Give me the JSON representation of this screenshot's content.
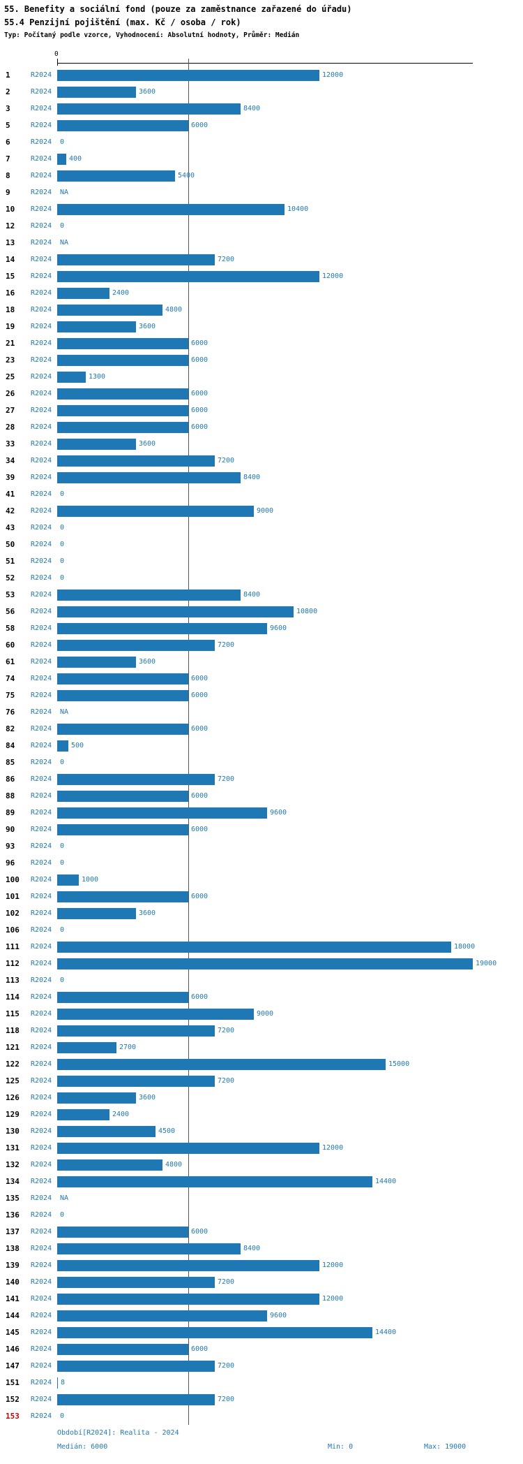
{
  "header": {
    "title": "55. Benefity a sociální fond (pouze za zaměstnance zařazené do úřadu)",
    "subtitle": "55.4 Penzijní pojištění (max. Kč / osoba / rok)",
    "meta": "Typ: Počítaný podle vzorce, Vyhodnocení: Absolutní hodnoty, Průměr: Medián"
  },
  "footer": {
    "period": "Období[R2024]: Realita - 2024",
    "median": "Medián: 6000",
    "min": "Min: 0",
    "max": "Max: 19000"
  },
  "chart_data": {
    "type": "bar",
    "orientation": "horizontal",
    "title": "55. Benefity a sociální fond (pouze za zaměstnance zařazené do úřadu)",
    "subtitle": "55.4 Penzijní pojištění (max. Kč / osoba / rok)",
    "series_label": "R2024",
    "axis": {
      "origin_label": "0",
      "min": 0,
      "max": 19000
    },
    "xlim": [
      0,
      19000
    ],
    "median_value": 6000,
    "min_value": 0,
    "max_value": 19000,
    "highlighted_row_id": "153",
    "bar_color": "#1f77b4",
    "label_color": "#1f77b4",
    "highlight_color": "#cc0000",
    "rows": [
      {
        "id": "1",
        "value": 12000,
        "label": "12000"
      },
      {
        "id": "2",
        "value": 3600,
        "label": "3600"
      },
      {
        "id": "3",
        "value": 8400,
        "label": "8400"
      },
      {
        "id": "5",
        "value": 6000,
        "label": "6000"
      },
      {
        "id": "6",
        "value": 0,
        "label": "0"
      },
      {
        "id": "7",
        "value": 400,
        "label": "400"
      },
      {
        "id": "8",
        "value": 5400,
        "label": "5400"
      },
      {
        "id": "9",
        "value": null,
        "label": "NA"
      },
      {
        "id": "10",
        "value": 10400,
        "label": "10400"
      },
      {
        "id": "12",
        "value": 0,
        "label": "0"
      },
      {
        "id": "13",
        "value": null,
        "label": "NA"
      },
      {
        "id": "14",
        "value": 7200,
        "label": "7200"
      },
      {
        "id": "15",
        "value": 12000,
        "label": "12000"
      },
      {
        "id": "16",
        "value": 2400,
        "label": "2400"
      },
      {
        "id": "18",
        "value": 4800,
        "label": "4800"
      },
      {
        "id": "19",
        "value": 3600,
        "label": "3600"
      },
      {
        "id": "21",
        "value": 6000,
        "label": "6000"
      },
      {
        "id": "23",
        "value": 6000,
        "label": "6000"
      },
      {
        "id": "25",
        "value": 1300,
        "label": "1300"
      },
      {
        "id": "26",
        "value": 6000,
        "label": "6000"
      },
      {
        "id": "27",
        "value": 6000,
        "label": "6000"
      },
      {
        "id": "28",
        "value": 6000,
        "label": "6000"
      },
      {
        "id": "33",
        "value": 3600,
        "label": "3600"
      },
      {
        "id": "34",
        "value": 7200,
        "label": "7200"
      },
      {
        "id": "39",
        "value": 8400,
        "label": "8400"
      },
      {
        "id": "41",
        "value": 0,
        "label": "0"
      },
      {
        "id": "42",
        "value": 9000,
        "label": "9000"
      },
      {
        "id": "43",
        "value": 0,
        "label": "0"
      },
      {
        "id": "50",
        "value": 0,
        "label": "0"
      },
      {
        "id": "51",
        "value": 0,
        "label": "0"
      },
      {
        "id": "52",
        "value": 0,
        "label": "0"
      },
      {
        "id": "53",
        "value": 8400,
        "label": "8400"
      },
      {
        "id": "56",
        "value": 10800,
        "label": "10800"
      },
      {
        "id": "58",
        "value": 9600,
        "label": "9600"
      },
      {
        "id": "60",
        "value": 7200,
        "label": "7200"
      },
      {
        "id": "61",
        "value": 3600,
        "label": "3600"
      },
      {
        "id": "74",
        "value": 6000,
        "label": "6000"
      },
      {
        "id": "75",
        "value": 6000,
        "label": "6000"
      },
      {
        "id": "76",
        "value": null,
        "label": "NA"
      },
      {
        "id": "82",
        "value": 6000,
        "label": "6000"
      },
      {
        "id": "84",
        "value": 500,
        "label": "500"
      },
      {
        "id": "85",
        "value": 0,
        "label": "0"
      },
      {
        "id": "86",
        "value": 7200,
        "label": "7200"
      },
      {
        "id": "88",
        "value": 6000,
        "label": "6000"
      },
      {
        "id": "89",
        "value": 9600,
        "label": "9600"
      },
      {
        "id": "90",
        "value": 6000,
        "label": "6000"
      },
      {
        "id": "93",
        "value": 0,
        "label": "0"
      },
      {
        "id": "96",
        "value": 0,
        "label": "0"
      },
      {
        "id": "100",
        "value": 1000,
        "label": "1000"
      },
      {
        "id": "101",
        "value": 6000,
        "label": "6000"
      },
      {
        "id": "102",
        "value": 3600,
        "label": "3600"
      },
      {
        "id": "106",
        "value": 0,
        "label": "0"
      },
      {
        "id": "111",
        "value": 18000,
        "label": "18000"
      },
      {
        "id": "112",
        "value": 19000,
        "label": "19000"
      },
      {
        "id": "113",
        "value": 0,
        "label": "0"
      },
      {
        "id": "114",
        "value": 6000,
        "label": "6000"
      },
      {
        "id": "115",
        "value": 9000,
        "label": "9000"
      },
      {
        "id": "118",
        "value": 7200,
        "label": "7200"
      },
      {
        "id": "121",
        "value": 2700,
        "label": "2700"
      },
      {
        "id": "122",
        "value": 15000,
        "label": "15000"
      },
      {
        "id": "125",
        "value": 7200,
        "label": "7200"
      },
      {
        "id": "126",
        "value": 3600,
        "label": "3600"
      },
      {
        "id": "129",
        "value": 2400,
        "label": "2400"
      },
      {
        "id": "130",
        "value": 4500,
        "label": "4500"
      },
      {
        "id": "131",
        "value": 12000,
        "label": "12000"
      },
      {
        "id": "132",
        "value": 4800,
        "label": "4800"
      },
      {
        "id": "134",
        "value": 14400,
        "label": "14400"
      },
      {
        "id": "135",
        "value": null,
        "label": "NA"
      },
      {
        "id": "136",
        "value": 0,
        "label": "0"
      },
      {
        "id": "137",
        "value": 6000,
        "label": "6000"
      },
      {
        "id": "138",
        "value": 8400,
        "label": "8400"
      },
      {
        "id": "139",
        "value": 12000,
        "label": "12000"
      },
      {
        "id": "140",
        "value": 7200,
        "label": "7200"
      },
      {
        "id": "141",
        "value": 12000,
        "label": "12000"
      },
      {
        "id": "144",
        "value": 9600,
        "label": "9600"
      },
      {
        "id": "145",
        "value": 14400,
        "label": "14400"
      },
      {
        "id": "146",
        "value": 6000,
        "label": "6000"
      },
      {
        "id": "147",
        "value": 7200,
        "label": "7200"
      },
      {
        "id": "151",
        "value": 8,
        "label": "8"
      },
      {
        "id": "152",
        "value": 7200,
        "label": "7200"
      },
      {
        "id": "153",
        "value": 0,
        "label": "0"
      }
    ]
  }
}
